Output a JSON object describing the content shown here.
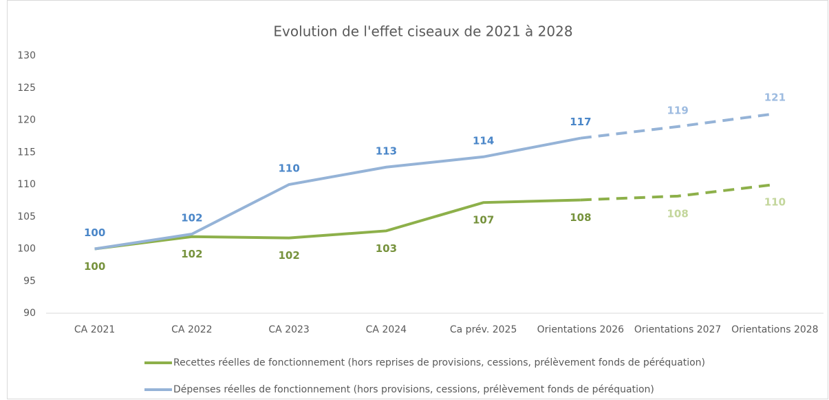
{
  "chart_data": {
    "type": "line",
    "title": "Evolution de l'effet ciseaux de 2021 à 2028",
    "categories": [
      "CA 2021",
      "CA 2022",
      "CA 2023",
      "CA 2024",
      "Ca prév. 2025",
      "Orientations 2026",
      "Orientations 2027",
      "Orientations 2028"
    ],
    "ylim": [
      90,
      130
    ],
    "yticks": [
      90,
      95,
      100,
      105,
      110,
      115,
      120,
      125,
      130
    ],
    "grid": false,
    "dashed_from": 5,
    "series": [
      {
        "name": "Recettes réelles de fonctionnement (hors reprises de provisions, cessions, prélèvement fonds de péréquation)",
        "color": "#8db04a",
        "label_color": "#76923c",
        "projected_label_color": "#c3d69b",
        "values": [
          100,
          101.9,
          101.7,
          102.8,
          107.2,
          107.6,
          108.2,
          110
        ],
        "value_labels": [
          "100",
          "102",
          "102",
          "103",
          "107",
          "108",
          "108",
          "110"
        ]
      },
      {
        "name": "Dépenses réelles de fonctionnement  (hors provisions, cessions, prélèvement fonds de péréquation)",
        "color": "#95b3d7",
        "label_color": "#4a86c8",
        "projected_label_color": "#9dbbe0",
        "values": [
          100,
          102.3,
          110,
          112.7,
          114.3,
          117.2,
          119,
          121
        ],
        "value_labels": [
          "100",
          "102",
          "110",
          "113",
          "114",
          "117",
          "119",
          "121"
        ]
      }
    ]
  }
}
